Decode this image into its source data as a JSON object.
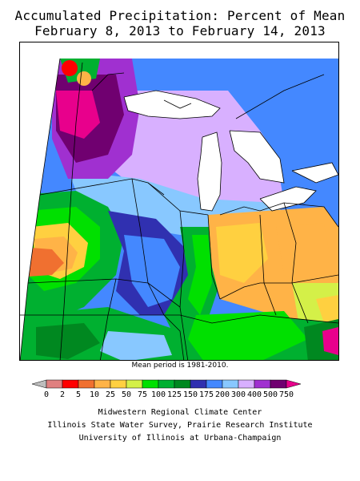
{
  "title_line1": "Accumulated Precipitation: Percent of Mean",
  "title_line2": "February 8, 2013 to February 14, 2013",
  "note": "Mean period is 1981-2010.",
  "legend": {
    "labels": [
      "0",
      "2",
      "5",
      "10",
      "25",
      "50",
      "75",
      "100",
      "125",
      "150",
      "175",
      "200",
      "300",
      "400",
      "500",
      "750"
    ],
    "colors": [
      "#bdbdbd",
      "#e08080",
      "#ff0000",
      "#f07030",
      "#ffb347",
      "#ffd040",
      "#d4f048",
      "#00e000",
      "#00b030",
      "#008820",
      "#3030b0",
      "#4488ff",
      "#88c8ff",
      "#d8b0ff",
      "#a030d0",
      "#700070",
      "#e8008c"
    ],
    "low_arrow_color": "#bdbdbd",
    "high_arrow_color": "#e8008c"
  },
  "credits": [
    "Midwestern Regional Climate Center",
    "Illinois State Water Survey, Prairie Research Institute",
    "University of Illinois at Urbana-Champaign"
  ]
}
